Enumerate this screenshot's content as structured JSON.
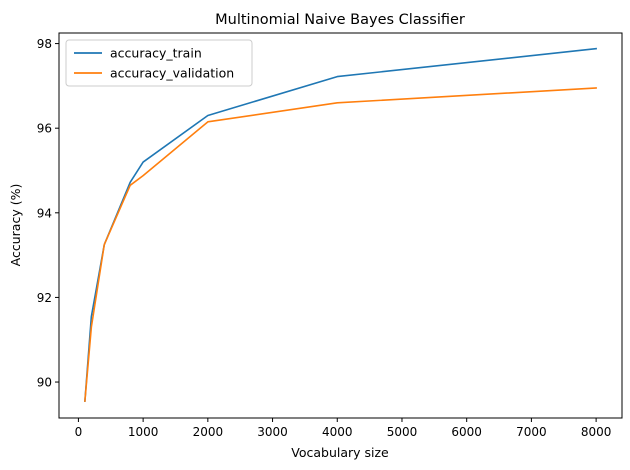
{
  "chart_data": {
    "type": "line",
    "title": "Multinomial Naive Bayes Classifier",
    "xlabel": "Vocabulary size",
    "ylabel": "Accuracy (%)",
    "xlim": [
      -300,
      8400
    ],
    "ylim": [
      89.15,
      98.25
    ],
    "xticks": [
      0,
      1000,
      2000,
      3000,
      4000,
      5000,
      6000,
      7000,
      8000
    ],
    "yticks": [
      90,
      92,
      94,
      96,
      98
    ],
    "grid": false,
    "legend_position": "top-left",
    "series": [
      {
        "name": "accuracy_train",
        "color": "#1f77b4",
        "x": [
          100,
          200,
          400,
          800,
          1000,
          2000,
          4000,
          8000
        ],
        "y": [
          89.55,
          91.55,
          93.25,
          94.72,
          95.2,
          96.3,
          97.22,
          97.88
        ]
      },
      {
        "name": "accuracy_validation",
        "color": "#ff7f0e",
        "x": [
          100,
          200,
          400,
          800,
          1000,
          2000,
          4000,
          8000
        ],
        "y": [
          89.55,
          91.3,
          93.25,
          94.65,
          94.88,
          96.15,
          96.6,
          96.95
        ]
      }
    ]
  }
}
